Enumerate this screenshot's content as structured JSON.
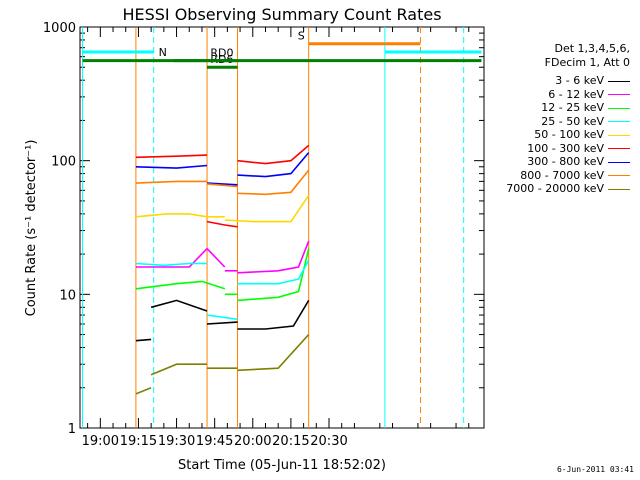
{
  "chart_data": {
    "type": "line",
    "title": "HESSI Observing Summary Count Rates",
    "xlabel": "Start Time (05-Jun-11 18:52:02)",
    "ylabel": "Count Rate (s⁻¹ detector⁻¹)",
    "y_scale": "log",
    "ylim": [
      1,
      1000
    ],
    "xlim_minutes_of_day": [
      1132,
      1291
    ],
    "x_ticks": [
      "19:00",
      "19:15",
      "19:30",
      "19:45",
      "20:00",
      "20:15",
      "20:30"
    ],
    "y_ticks": [
      "1",
      "10",
      "100",
      "1000"
    ],
    "detector_info": [
      "Det 1,3,4,5,6,",
      "FDecim 1, Att 0"
    ],
    "series": [
      {
        "name": "3 - 6 keV",
        "color": "#000000",
        "segments": [
          [
            [
              1154,
              4.5
            ],
            [
              1160,
              4.6
            ]
          ],
          [
            [
              1160,
              8
            ],
            [
              1170,
              9
            ],
            [
              1182,
              7.5
            ]
          ],
          [
            [
              1182,
              6
            ],
            [
              1194,
              6.2
            ]
          ],
          [
            [
              1194,
              5.5
            ],
            [
              1205,
              5.5
            ],
            [
              1216,
              5.8
            ],
            [
              1222,
              9
            ]
          ]
        ]
      },
      {
        "name": "6 - 12 keV",
        "color": "#ff00ff",
        "segments": [
          [
            [
              1154,
              16
            ],
            [
              1175,
              16
            ],
            [
              1182,
              22
            ],
            [
              1189,
              16
            ]
          ],
          [
            [
              1189,
              15
            ],
            [
              1194,
              15
            ]
          ],
          [
            [
              1194,
              14.5
            ],
            [
              1210,
              15
            ],
            [
              1218,
              16
            ],
            [
              1222,
              25
            ]
          ]
        ]
      },
      {
        "name": "12 - 25 keV",
        "color": "#00ff00",
        "segments": [
          [
            [
              1154,
              11
            ],
            [
              1170,
              12
            ],
            [
              1180,
              12.5
            ],
            [
              1189,
              11
            ]
          ],
          [
            [
              1189,
              10
            ],
            [
              1194,
              10
            ]
          ],
          [
            [
              1194,
              9
            ],
            [
              1210,
              9.5
            ],
            [
              1218,
              10.5
            ],
            [
              1222,
              22
            ]
          ]
        ]
      },
      {
        "name": "25 - 50 keV",
        "color": "#00ffff",
        "segments": [
          [
            [
              1154,
              17
            ],
            [
              1165,
              16.5
            ],
            [
              1175,
              17
            ],
            [
              1182,
              17
            ]
          ],
          [
            [
              1182,
              7
            ],
            [
              1194,
              6.5
            ]
          ],
          [
            [
              1194,
              12
            ],
            [
              1210,
              12
            ],
            [
              1218,
              13
            ],
            [
              1222,
              18
            ]
          ]
        ]
      },
      {
        "name": "50 - 100 keV",
        "color": "#ffd800",
        "segments": [
          [
            [
              1154,
              38
            ],
            [
              1166,
              40
            ],
            [
              1175,
              40
            ],
            [
              1182,
              38
            ]
          ],
          [
            [
              1182,
              38
            ],
            [
              1189,
              38
            ]
          ],
          [
            [
              1189,
              36
            ],
            [
              1200,
              35
            ],
            [
              1215,
              35
            ],
            [
              1222,
              55
            ]
          ]
        ]
      },
      {
        "name": "100 - 300 keV",
        "color": "#ff0000",
        "segments": [
          [
            [
              1154,
              106
            ],
            [
              1170,
              108
            ],
            [
              1182,
              110
            ]
          ],
          [
            [
              1182,
              35
            ],
            [
              1189,
              33
            ],
            [
              1194,
              32
            ]
          ],
          [
            [
              1194,
              100
            ],
            [
              1205,
              95
            ],
            [
              1215,
              100
            ],
            [
              1222,
              130
            ]
          ]
        ]
      },
      {
        "name": "300 - 800 keV",
        "color": "#0000ff",
        "segments": [
          [
            [
              1154,
              90
            ],
            [
              1170,
              88
            ],
            [
              1182,
              92
            ]
          ],
          [
            [
              1182,
              68
            ],
            [
              1194,
              66
            ]
          ],
          [
            [
              1194,
              78
            ],
            [
              1205,
              76
            ],
            [
              1215,
              80
            ],
            [
              1222,
              115
            ]
          ]
        ]
      },
      {
        "name": "800 - 7000 keV",
        "color": "#ff8000",
        "segments": [
          [
            [
              1154,
              68
            ],
            [
              1170,
              70
            ],
            [
              1182,
              70
            ]
          ],
          [
            [
              1182,
              67
            ],
            [
              1194,
              64
            ]
          ],
          [
            [
              1194,
              57
            ],
            [
              1205,
              56
            ],
            [
              1215,
              58
            ],
            [
              1222,
              85
            ]
          ]
        ]
      },
      {
        "name": "7000 - 20000 keV",
        "color": "#808000",
        "segments": [
          [
            [
              1154,
              1.8
            ],
            [
              1160,
              2.0
            ]
          ],
          [
            [
              1160,
              2.5
            ],
            [
              1170,
              3.0
            ],
            [
              1182,
              3.0
            ]
          ],
          [
            [
              1182,
              2.8
            ],
            [
              1194,
              2.8
            ]
          ],
          [
            [
              1194,
              2.7
            ],
            [
              1210,
              2.8
            ],
            [
              1222,
              5
            ]
          ]
        ]
      }
    ],
    "annotations": [
      {
        "label": "N",
        "x_start": 1133,
        "x_end": 1161,
        "y": 650,
        "color": "#00ffff"
      },
      {
        "label": "S",
        "x_start": 1222,
        "x_end": 1266,
        "y": 750,
        "color": "#ff8000"
      },
      {
        "label": "",
        "x_start": 1252,
        "x_end": 1290,
        "y": 650,
        "color": "#00ffff"
      },
      {
        "label": "RD0",
        "x_start": 1169,
        "x_end": 1194,
        "y": 560,
        "color": "#008000"
      },
      {
        "label": "RD6",
        "x_start": 1182,
        "x_end": 1194,
        "y": 500,
        "color": "#008000"
      },
      {
        "label": "",
        "x_start": 1133,
        "x_end": 1290,
        "y": 560,
        "color": "#008000"
      }
    ],
    "vertical_markers": [
      {
        "x": 1133,
        "color": "#00ffff",
        "dashed": false
      },
      {
        "x": 1161,
        "color": "#00ffff",
        "dashed": true
      },
      {
        "x": 1154,
        "color": "#ff8000",
        "dashed": false
      },
      {
        "x": 1182,
        "color": "#ff8000",
        "dashed": false
      },
      {
        "x": 1194,
        "color": "#ff8000",
        "dashed": false
      },
      {
        "x": 1222,
        "color": "#ff8000",
        "dashed": false
      },
      {
        "x": 1252,
        "color": "#00ffff",
        "dashed": false
      },
      {
        "x": 1266,
        "color": "#ff8000",
        "dashed": true
      },
      {
        "x": 1283,
        "color": "#00ffff",
        "dashed": true
      }
    ],
    "timestamp": "6-Jun-2011 03:41"
  }
}
